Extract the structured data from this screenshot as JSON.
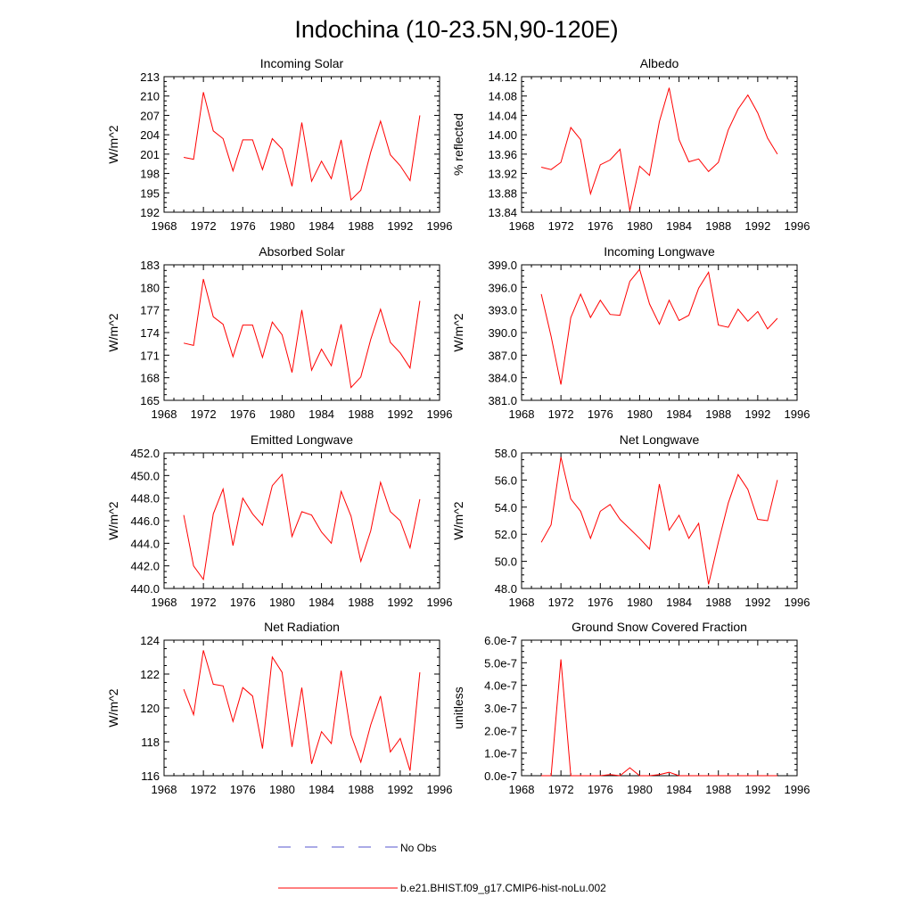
{
  "title": "Indochina (10-23.5N,90-120E)",
  "legend": {
    "entries": [
      {
        "label": "No Obs",
        "color": "#5555cc",
        "style": "dashed"
      },
      {
        "label": "b.e21.BHIST.f09_g17.CMIP6-hist-noLu.002",
        "color": "#ff0000",
        "style": "solid"
      }
    ]
  },
  "chart_data": [
    {
      "type": "line",
      "title": "Incoming Solar",
      "ylabel": "W/m^2",
      "xlabel": "",
      "xlim": [
        1968,
        1996
      ],
      "ylim": [
        192,
        213
      ],
      "xticks": [
        "1968",
        "1972",
        "1976",
        "1980",
        "1984",
        "1988",
        "1992",
        "1996"
      ],
      "yticks": [
        "192",
        "195",
        "198",
        "201",
        "204",
        "207",
        "210",
        "213"
      ],
      "series": [
        {
          "color": "#ff0000",
          "x": [
            1970,
            1971,
            1972,
            1973,
            1974,
            1975,
            1976,
            1977,
            1978,
            1979,
            1980,
            1981,
            1982,
            1983,
            1984,
            1985,
            1986,
            1987,
            1988,
            1989,
            1990,
            1991,
            1992,
            1993,
            1994
          ],
          "values": [
            200.5,
            200.2,
            210.6,
            204.6,
            203.4,
            198.4,
            203.2,
            203.2,
            198.6,
            203.4,
            201.8,
            196.0,
            205.9,
            196.8,
            199.9,
            197.2,
            203.2,
            193.9,
            195.4,
            201.3,
            206.1,
            200.9,
            199.2,
            196.9,
            207.0
          ]
        }
      ]
    },
    {
      "type": "line",
      "title": "Albedo",
      "ylabel": "% reflected",
      "xlabel": "",
      "xlim": [
        1968,
        1996
      ],
      "ylim": [
        13.84,
        14.12
      ],
      "xticks": [
        "1968",
        "1972",
        "1976",
        "1980",
        "1984",
        "1988",
        "1992",
        "1996"
      ],
      "yticks": [
        "13.84",
        "13.88",
        "13.92",
        "13.96",
        "14.00",
        "14.04",
        "14.08",
        "14.12"
      ],
      "series": [
        {
          "color": "#ff0000",
          "x": [
            1970,
            1971,
            1972,
            1973,
            1974,
            1975,
            1976,
            1977,
            1978,
            1979,
            1980,
            1981,
            1982,
            1983,
            1984,
            1985,
            1986,
            1987,
            1988,
            1989,
            1990,
            1991,
            1992,
            1993,
            1994
          ],
          "values": [
            13.933,
            13.928,
            13.943,
            14.015,
            13.99,
            13.878,
            13.938,
            13.948,
            13.97,
            13.843,
            13.935,
            13.916,
            14.027,
            14.097,
            13.99,
            13.944,
            13.95,
            13.924,
            13.943,
            14.01,
            14.053,
            14.082,
            14.045,
            13.993,
            13.96
          ]
        }
      ]
    },
    {
      "type": "line",
      "title": "Absorbed Solar",
      "ylabel": "W/m^2",
      "xlabel": "",
      "xlim": [
        1968,
        1996
      ],
      "ylim": [
        165,
        183
      ],
      "xticks": [
        "1968",
        "1972",
        "1976",
        "1980",
        "1984",
        "1988",
        "1992",
        "1996"
      ],
      "yticks": [
        "165",
        "168",
        "171",
        "174",
        "177",
        "180",
        "183"
      ],
      "series": [
        {
          "color": "#ff0000",
          "x": [
            1970,
            1971,
            1972,
            1973,
            1974,
            1975,
            1976,
            1977,
            1978,
            1979,
            1980,
            1981,
            1982,
            1983,
            1984,
            1985,
            1986,
            1987,
            1988,
            1989,
            1990,
            1991,
            1992,
            1993,
            1994
          ],
          "values": [
            172.6,
            172.3,
            181.1,
            176.1,
            175.1,
            170.8,
            175.0,
            175.0,
            170.7,
            175.4,
            173.7,
            168.7,
            177.0,
            169.0,
            171.8,
            169.6,
            175.1,
            166.7,
            168.1,
            173.1,
            177.1,
            172.7,
            171.3,
            169.3,
            178.2
          ]
        }
      ]
    },
    {
      "type": "line",
      "title": "Incoming Longwave",
      "ylabel": "W/m^2",
      "xlabel": "",
      "xlim": [
        1968,
        1996
      ],
      "ylim": [
        381.0,
        399.0
      ],
      "xticks": [
        "1968",
        "1972",
        "1976",
        "1980",
        "1984",
        "1988",
        "1992",
        "1996"
      ],
      "yticks": [
        "381.0",
        "384.0",
        "387.0",
        "390.0",
        "393.0",
        "396.0",
        "399.0"
      ],
      "series": [
        {
          "color": "#ff0000",
          "x": [
            1970,
            1971,
            1972,
            1973,
            1974,
            1975,
            1976,
            1977,
            1978,
            1979,
            1980,
            1981,
            1982,
            1983,
            1984,
            1985,
            1986,
            1987,
            1988,
            1989,
            1990,
            1991,
            1992,
            1993,
            1994
          ],
          "values": [
            395.1,
            389.5,
            383.1,
            392.0,
            395.1,
            392.0,
            394.3,
            392.4,
            392.3,
            396.8,
            398.4,
            393.8,
            391.1,
            394.3,
            391.6,
            392.3,
            395.9,
            398.0,
            391.0,
            390.7,
            393.1,
            391.5,
            392.8,
            390.5,
            391.9
          ]
        }
      ]
    },
    {
      "type": "line",
      "title": "Emitted Longwave",
      "ylabel": "W/m^2",
      "xlabel": "",
      "xlim": [
        1968,
        1996
      ],
      "ylim": [
        440.0,
        452.0
      ],
      "xticks": [
        "1968",
        "1972",
        "1976",
        "1980",
        "1984",
        "1988",
        "1992",
        "1996"
      ],
      "yticks": [
        "440.0",
        "442.0",
        "444.0",
        "446.0",
        "448.0",
        "450.0",
        "452.0"
      ],
      "series": [
        {
          "color": "#ff0000",
          "x": [
            1970,
            1971,
            1972,
            1973,
            1974,
            1975,
            1976,
            1977,
            1978,
            1979,
            1980,
            1981,
            1982,
            1983,
            1984,
            1985,
            1986,
            1987,
            1988,
            1989,
            1990,
            1991,
            1992,
            1993,
            1994
          ],
          "values": [
            446.5,
            442.0,
            440.8,
            446.6,
            448.8,
            443.8,
            448.0,
            446.6,
            445.6,
            449.1,
            450.1,
            444.6,
            446.8,
            446.5,
            445.0,
            444.0,
            448.6,
            446.4,
            442.4,
            445.1,
            449.4,
            446.8,
            446.0,
            443.6,
            447.9
          ]
        }
      ]
    },
    {
      "type": "line",
      "title": "Net Longwave",
      "ylabel": "W/m^2",
      "xlabel": "",
      "xlim": [
        1968,
        1996
      ],
      "ylim": [
        48.0,
        58.0
      ],
      "xticks": [
        "1968",
        "1972",
        "1976",
        "1980",
        "1984",
        "1988",
        "1992",
        "1996"
      ],
      "yticks": [
        "48.0",
        "50.0",
        "52.0",
        "54.0",
        "56.0",
        "58.0"
      ],
      "series": [
        {
          "color": "#ff0000",
          "x": [
            1970,
            1971,
            1972,
            1973,
            1974,
            1975,
            1976,
            1977,
            1978,
            1979,
            1980,
            1981,
            1982,
            1983,
            1984,
            1985,
            1986,
            1987,
            1988,
            1989,
            1990,
            1991,
            1992,
            1993,
            1994
          ],
          "values": [
            51.4,
            52.7,
            57.7,
            54.6,
            53.7,
            51.7,
            53.7,
            54.2,
            53.1,
            52.4,
            51.7,
            50.9,
            55.7,
            52.3,
            53.4,
            51.7,
            52.8,
            48.3,
            51.4,
            54.3,
            56.4,
            55.3,
            53.1,
            53.0,
            56.0
          ]
        }
      ]
    },
    {
      "type": "line",
      "title": "Net Radiation",
      "ylabel": "W/m^2",
      "xlabel": "",
      "xlim": [
        1968,
        1996
      ],
      "ylim": [
        116,
        124
      ],
      "xticks": [
        "1968",
        "1972",
        "1976",
        "1980",
        "1984",
        "1988",
        "1992",
        "1996"
      ],
      "yticks": [
        "116",
        "118",
        "120",
        "122",
        "124"
      ],
      "series": [
        {
          "color": "#ff0000",
          "x": [
            1970,
            1971,
            1972,
            1973,
            1974,
            1975,
            1976,
            1977,
            1978,
            1979,
            1980,
            1981,
            1982,
            1983,
            1984,
            1985,
            1986,
            1987,
            1988,
            1989,
            1990,
            1991,
            1992,
            1993,
            1994
          ],
          "values": [
            121.1,
            119.6,
            123.4,
            121.4,
            121.3,
            119.2,
            121.2,
            120.7,
            117.6,
            123.0,
            122.1,
            117.7,
            121.2,
            116.7,
            118.6,
            117.9,
            122.2,
            118.4,
            116.8,
            119.0,
            120.7,
            117.4,
            118.2,
            116.3,
            122.1
          ]
        }
      ]
    },
    {
      "type": "line",
      "title": "Ground Snow Covered Fraction",
      "ylabel": "unitless",
      "xlabel": "",
      "xlim": [
        1968,
        1996
      ],
      "ylim": [
        0,
        6e-07
      ],
      "xticks": [
        "1968",
        "1972",
        "1976",
        "1980",
        "1984",
        "1988",
        "1992",
        "1996"
      ],
      "yticks": [
        "0.0e-7",
        "1.0e-7",
        "2.0e-7",
        "3.0e-7",
        "4.0e-7",
        "5.0e-7",
        "6.0e-7"
      ],
      "series": [
        {
          "color": "#ff0000",
          "x": [
            1970,
            1971,
            1972,
            1973,
            1974,
            1975,
            1976,
            1977,
            1978,
            1979,
            1980,
            1981,
            1982,
            1983,
            1984,
            1985,
            1986,
            1987,
            1988,
            1989,
            1990,
            1991,
            1992,
            1993,
            1994
          ],
          "values": [
            0,
            0,
            5.15e-07,
            0,
            0,
            0,
            0,
            5e-09,
            0,
            3.5e-08,
            0,
            0,
            5e-09,
            1.5e-08,
            0,
            0,
            0,
            0,
            0,
            0,
            0,
            0,
            0,
            0,
            0
          ]
        }
      ]
    }
  ]
}
